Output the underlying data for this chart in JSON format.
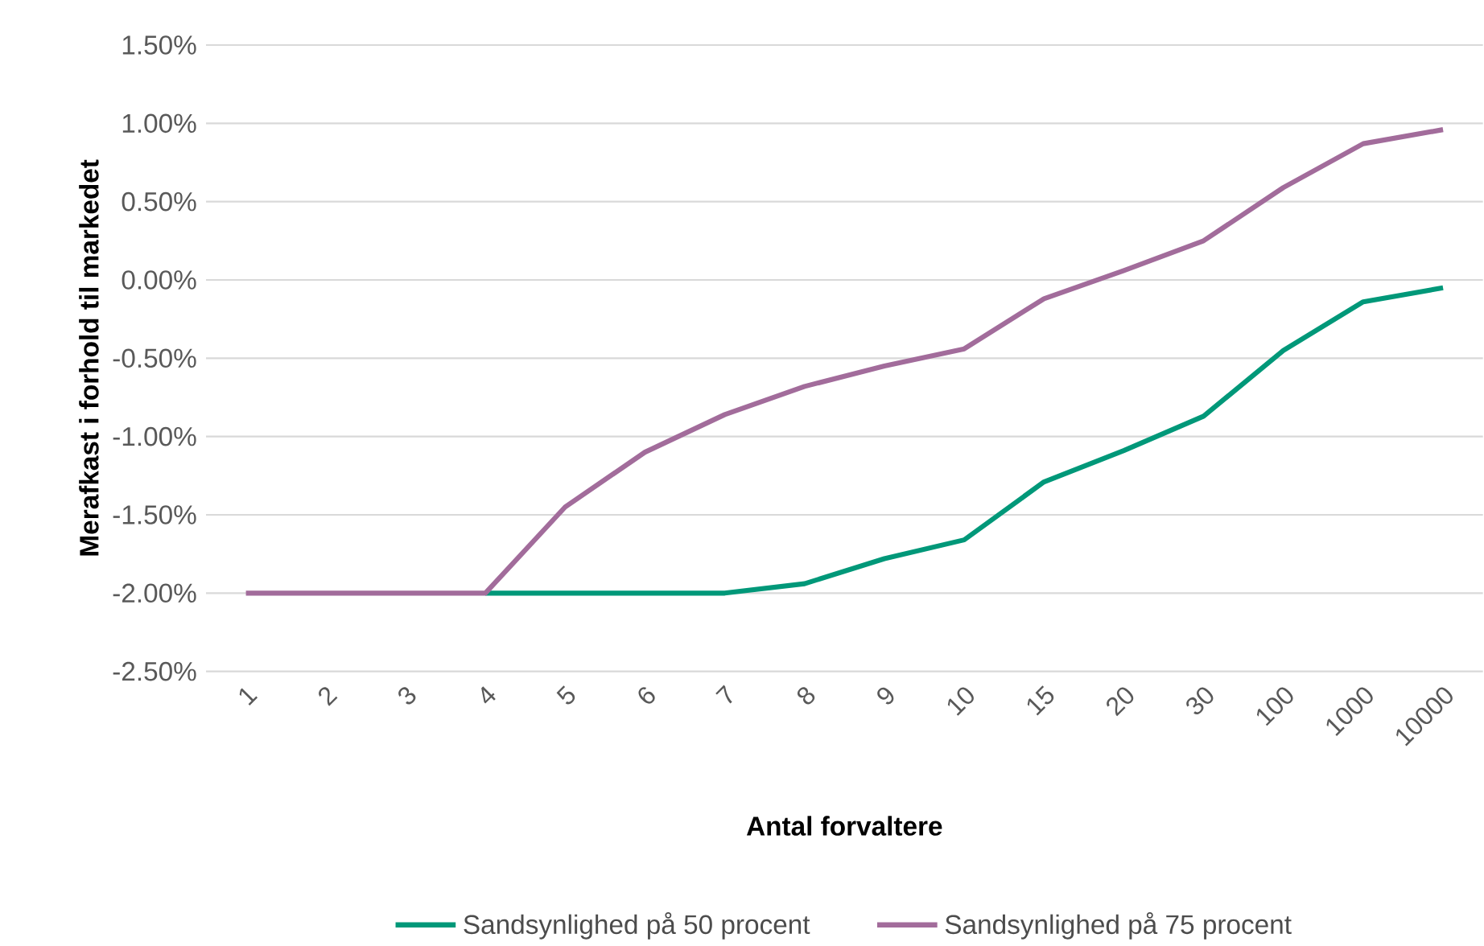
{
  "chart_data": {
    "type": "line",
    "xlabel": "Antal forvaltere",
    "ylabel": "Merafkast i forhold til markedet",
    "categories": [
      "1",
      "2",
      "3",
      "4",
      "5",
      "6",
      "7",
      "8",
      "9",
      "10",
      "15",
      "20",
      "30",
      "100",
      "1000",
      "10000"
    ],
    "series": [
      {
        "name": "Sandsynlighed på 50 procent",
        "color": "#009879",
        "values": [
          null,
          null,
          null,
          -2.0,
          -2.0,
          -2.0,
          -2.0,
          -1.94,
          -1.78,
          -1.66,
          -1.29,
          -1.09,
          -0.87,
          -0.45,
          -0.14,
          -0.05
        ]
      },
      {
        "name": "Sandsynlighed på 75 procent",
        "color": "#a26c9b",
        "values": [
          -2.0,
          -2.0,
          -2.0,
          -2.0,
          -1.45,
          -1.1,
          -0.86,
          -0.68,
          -0.55,
          -0.44,
          -0.12,
          0.06,
          0.25,
          0.59,
          0.87,
          0.96
        ]
      }
    ],
    "ylim": [
      -2.5,
      1.5
    ],
    "yticks": [
      {
        "value": -2.5,
        "label": "-2.50%"
      },
      {
        "value": -2.0,
        "label": "-2.00%"
      },
      {
        "value": -1.5,
        "label": "-1.50%"
      },
      {
        "value": -1.0,
        "label": "-1.00%"
      },
      {
        "value": -0.5,
        "label": "-0.50%"
      },
      {
        "value": 0.0,
        "label": "0.00%"
      },
      {
        "value": 0.5,
        "label": "0.50%"
      },
      {
        "value": 1.0,
        "label": "1.00%"
      },
      {
        "value": 1.5,
        "label": "1.50%"
      }
    ],
    "grid": "y",
    "legend": "bottom",
    "line_style": "solid"
  }
}
